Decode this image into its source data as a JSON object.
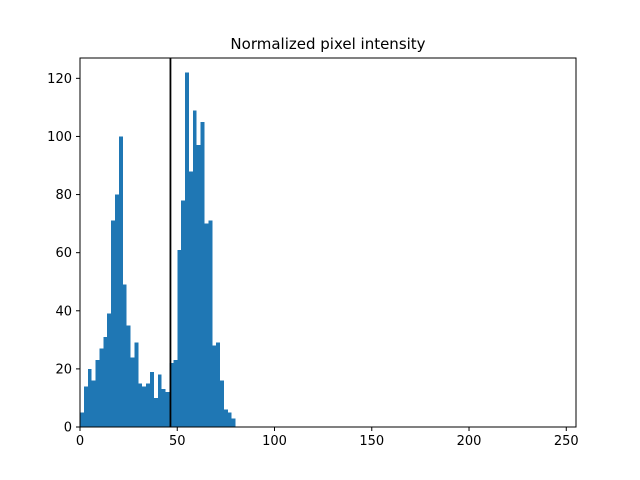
{
  "chart_data": {
    "type": "bar",
    "subtype": "histogram",
    "title": "Normalized pixel intensity",
    "xlabel": "",
    "ylabel": "",
    "xlim": [
      0,
      255
    ],
    "ylim": [
      0,
      127
    ],
    "bin_width": 2,
    "bins_start": [
      0,
      2,
      4,
      6,
      8,
      10,
      12,
      14,
      16,
      18,
      20,
      22,
      24,
      26,
      28,
      30,
      32,
      34,
      36,
      38,
      40,
      42,
      44,
      46,
      48,
      50,
      52,
      54,
      56,
      58,
      60,
      62,
      64,
      66,
      68,
      70,
      72,
      74,
      76,
      78,
      80,
      82,
      84,
      86,
      88,
      90,
      92
    ],
    "values": [
      5,
      14,
      20,
      16,
      23,
      27,
      31,
      39,
      71,
      80,
      100,
      49,
      35,
      24,
      29,
      15,
      14,
      15,
      19,
      10,
      18,
      13,
      12,
      22,
      23,
      61,
      78,
      122,
      88,
      109,
      97,
      105,
      70,
      71,
      28,
      29,
      16,
      6,
      5,
      3,
      0,
      0,
      0,
      0,
      0,
      0,
      0
    ],
    "vertical_line_x": 46.5,
    "x_ticks": [
      0,
      50,
      100,
      150,
      200,
      250
    ],
    "y_ticks": [
      0,
      20,
      40,
      60,
      80,
      100,
      120
    ],
    "bar_color": "#1f77b4",
    "line_color": "#000000",
    "grid": false,
    "legend": "none"
  }
}
